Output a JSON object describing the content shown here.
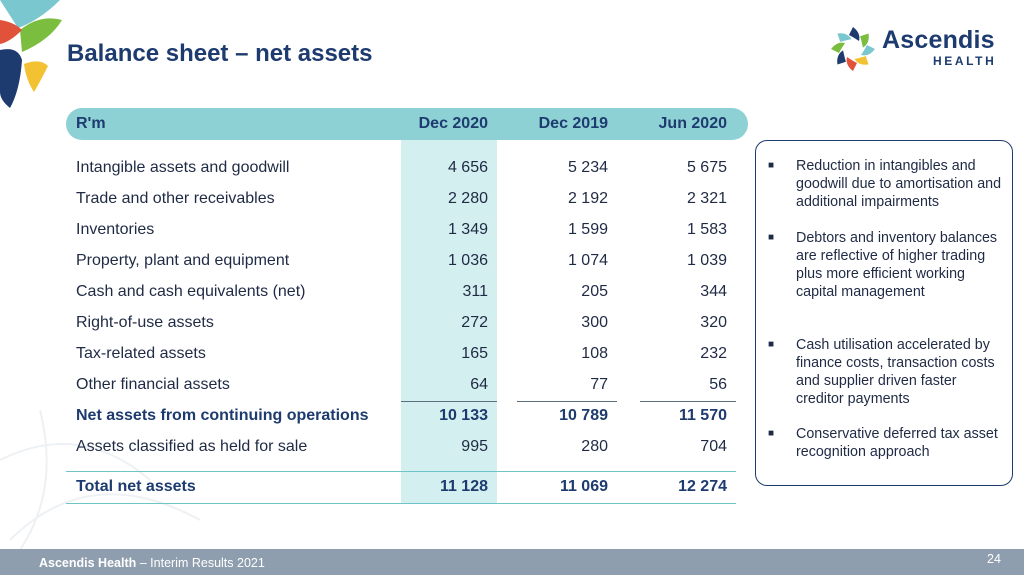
{
  "slide": {
    "title": "Balance sheet – net assets",
    "page_number": "24"
  },
  "logo": {
    "name": "Ascendis",
    "subtitle": "HEALTH"
  },
  "table": {
    "headers": [
      "R'm",
      "Dec 2020",
      "Dec 2019",
      "Jun 2020"
    ],
    "rows": [
      {
        "label": "Intangible assets and goodwill",
        "values": [
          "4 656",
          "5 234",
          "5 675"
        ]
      },
      {
        "label": "Trade and other receivables",
        "values": [
          "2 280",
          "2 192",
          "2 321"
        ]
      },
      {
        "label": "Inventories",
        "values": [
          "1 349",
          "1 599",
          "1 583"
        ]
      },
      {
        "label": "Property, plant and equipment",
        "values": [
          "1 036",
          "1 074",
          "1 039"
        ]
      },
      {
        "label": "Cash and cash equivalents (net)",
        "values": [
          "311",
          "205",
          "344"
        ]
      },
      {
        "label": "Right-of-use assets",
        "values": [
          "272",
          "300",
          "320"
        ]
      },
      {
        "label": "Tax-related assets",
        "values": [
          "165",
          "108",
          "232"
        ]
      },
      {
        "label": "Other financial assets",
        "values": [
          "64",
          "77",
          "56"
        ]
      },
      {
        "label": "Net assets from continuing operations",
        "values": [
          "10 133",
          "10 789",
          "11 570"
        ]
      },
      {
        "label": "Assets classified as held for sale",
        "values": [
          "995",
          "280",
          "704"
        ]
      }
    ],
    "total": {
      "label": "Total net assets",
      "values": [
        "11 128",
        "11 069",
        "12 274"
      ]
    }
  },
  "notes": [
    "Reduction in intangibles and goodwill due to amortisation and additional impairments",
    "Debtors and inventory balances are reflective of higher trading plus more efficient working capital management",
    "Cash utilisation accelerated by finance costs, transaction costs and supplier driven faster creditor payments",
    "Conservative deferred tax asset recognition approach"
  ],
  "footer": {
    "company": "Ascendis Health",
    "separator": " – ",
    "report": "Interim Results 2021"
  },
  "colors": {
    "brand_navy": "#1d3b6e",
    "header_teal": "#8ed1d5",
    "highlight_column": "#d4eff0",
    "footer_grey": "#8f9eae"
  }
}
